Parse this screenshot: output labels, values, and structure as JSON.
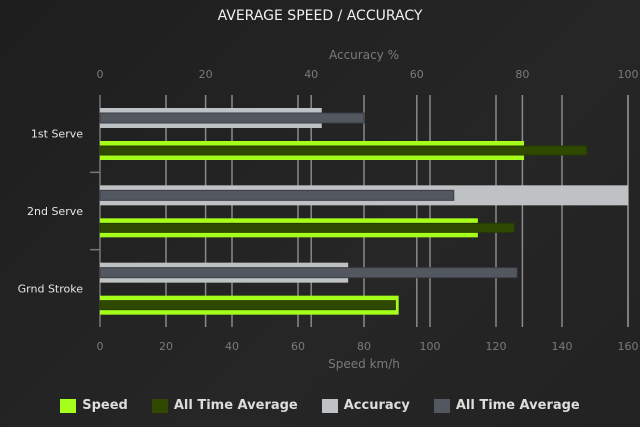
{
  "chart_data": {
    "type": "bar",
    "orientation": "horizontal",
    "title": "AVERAGE SPEED / ACCURACY",
    "categories": [
      "1st Serve",
      "2nd Serve",
      "Grnd Stroke"
    ],
    "x_axis_bottom": {
      "label": "Speed km/h",
      "range": [
        0,
        160
      ],
      "ticks": [
        0,
        20,
        40,
        60,
        80,
        100,
        120,
        140,
        160
      ]
    },
    "x_axis_top": {
      "label": "Accuracy %",
      "range": [
        0,
        100
      ],
      "ticks": [
        0,
        20,
        40,
        60,
        80,
        100
      ]
    },
    "grid": true,
    "legend_position": "bottom",
    "series": [
      {
        "name": "Speed",
        "axis": "bottom",
        "color": "#a6ff1a",
        "values": [
          128.5,
          114.5,
          90.5
        ]
      },
      {
        "name": "All Time Average",
        "axis": "bottom",
        "color": "#2f4a00",
        "values": [
          147.5,
          125.5,
          89.5
        ]
      },
      {
        "name": "Accuracy",
        "axis": "top",
        "color": "#bec2c4",
        "values": [
          42,
          100,
          47
        ]
      },
      {
        "name": "All Time Average",
        "axis": "top",
        "color": "#535860",
        "values": [
          50,
          67,
          79
        ]
      }
    ]
  }
}
